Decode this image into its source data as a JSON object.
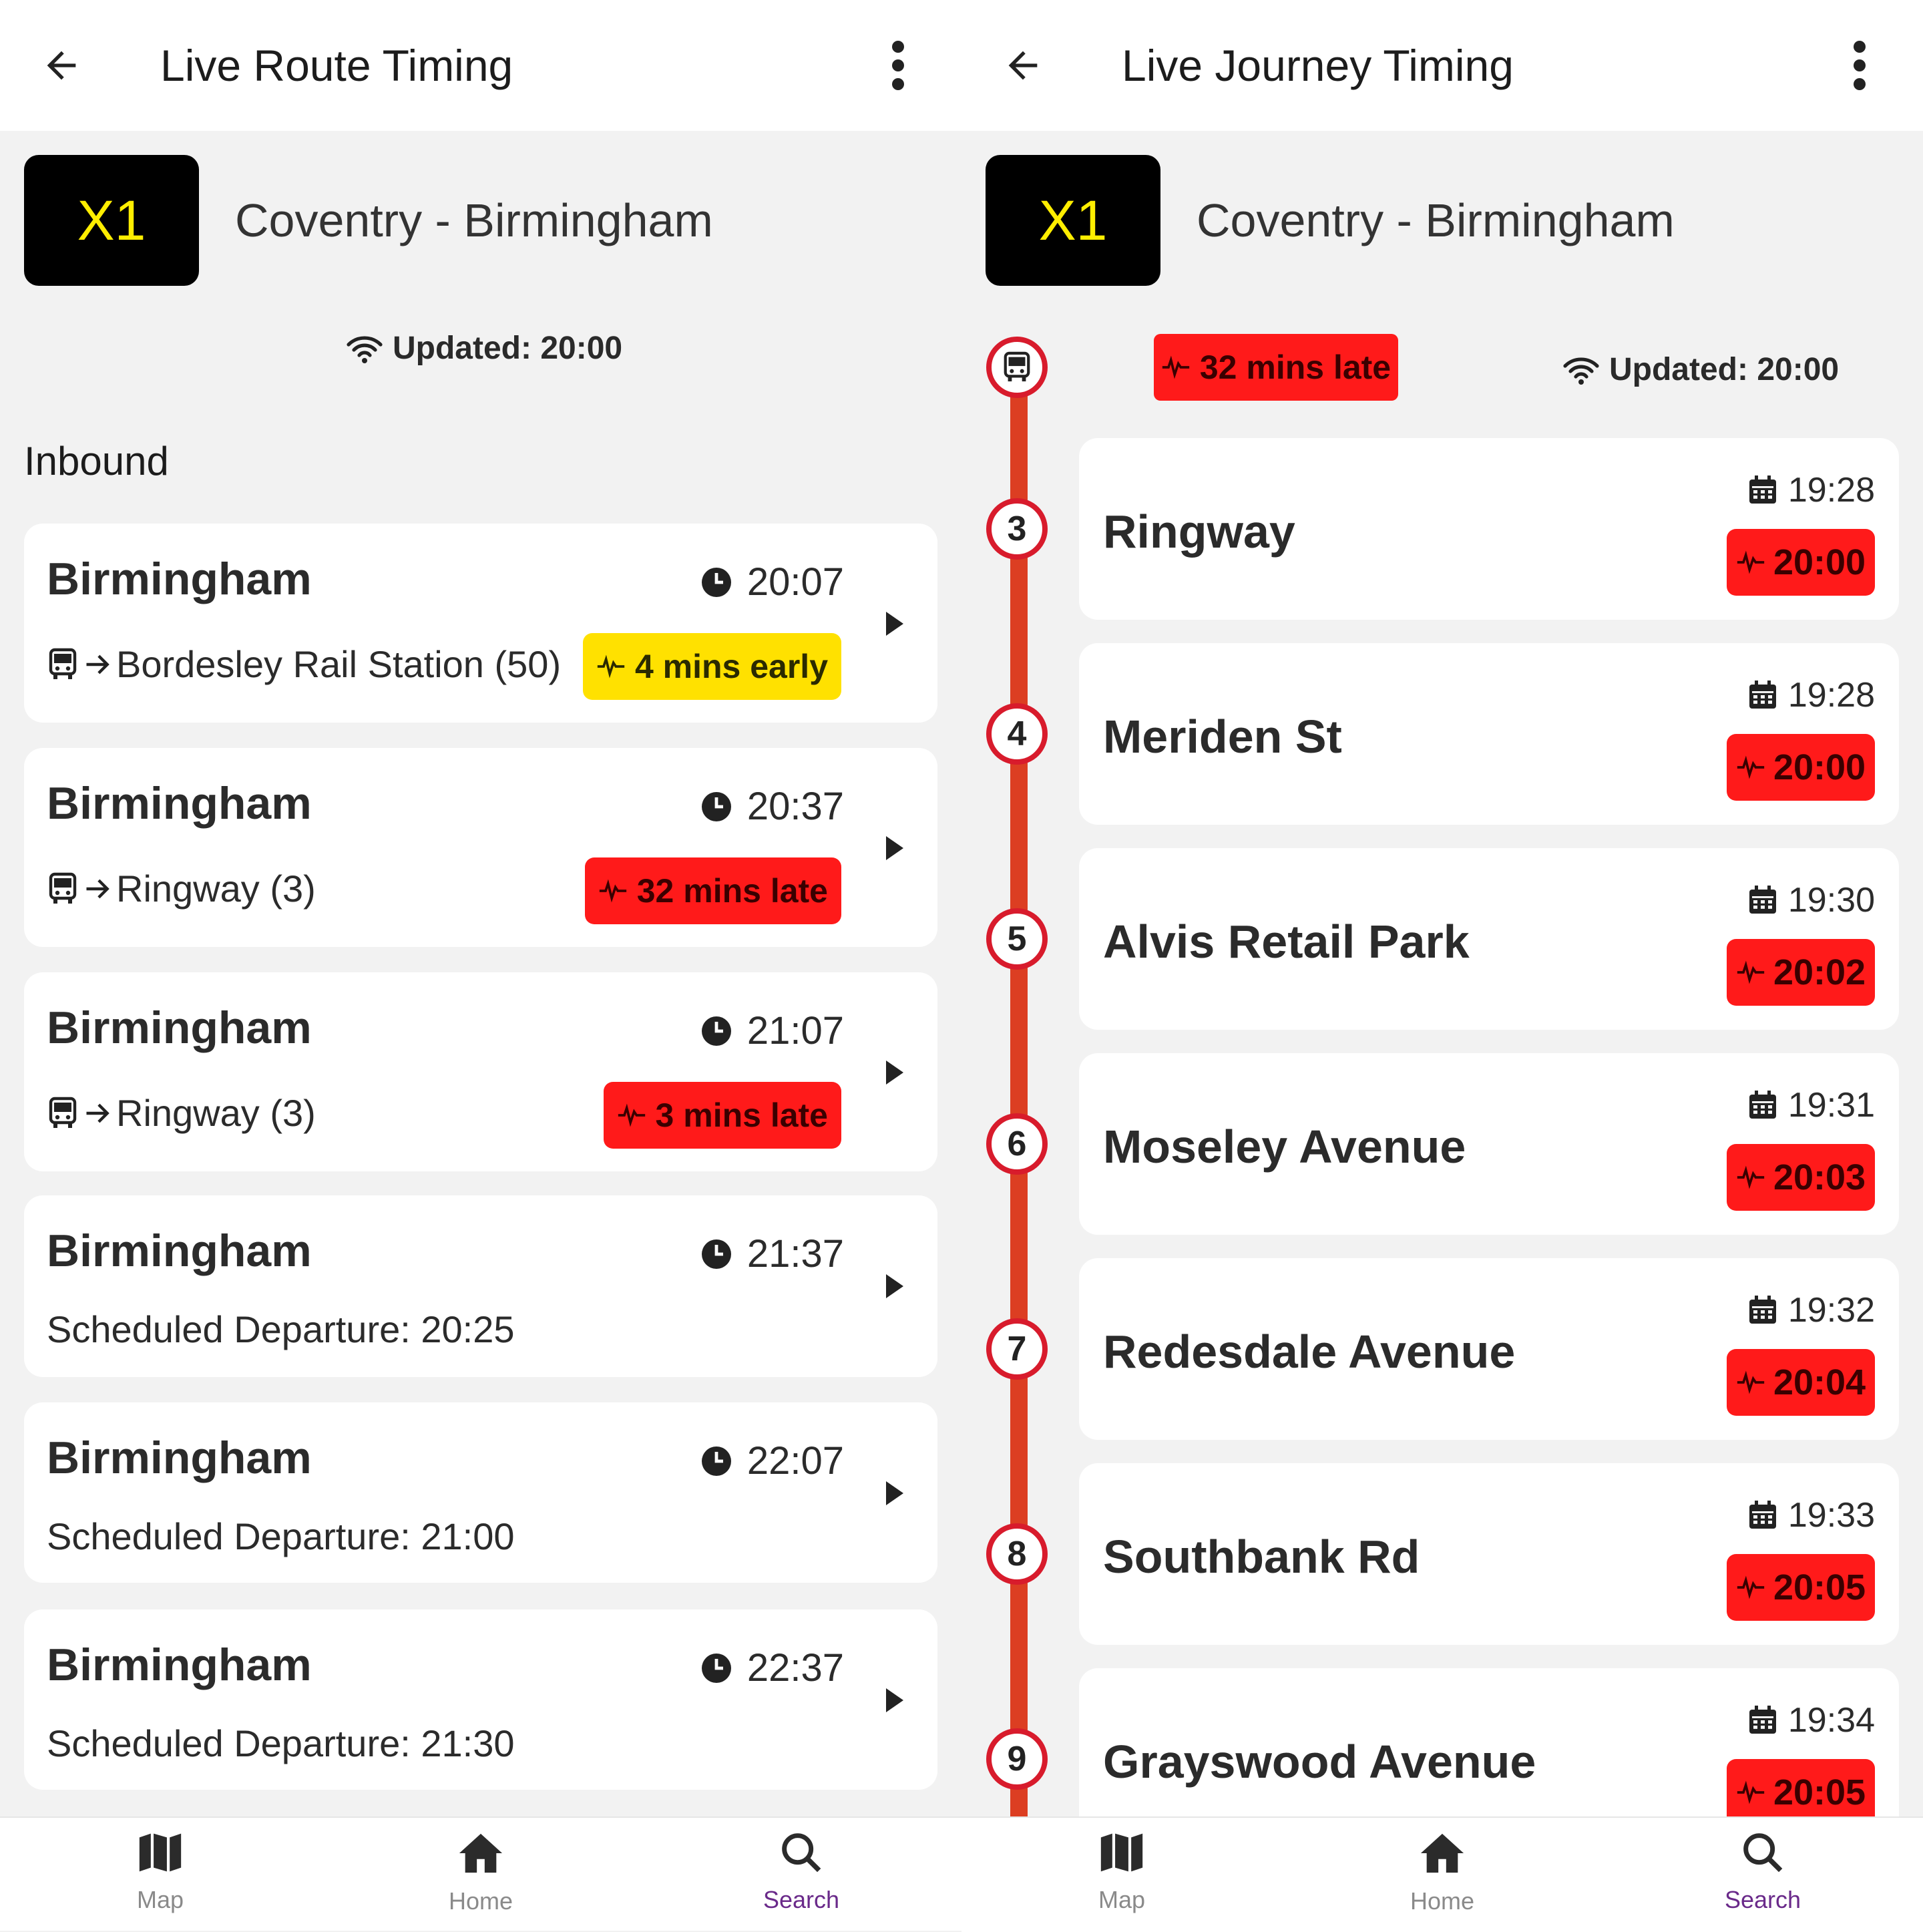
{
  "left": {
    "title": "Live Route Timing",
    "route_number": "X1",
    "route_name": "Coventry - Birmingham",
    "updated": "Updated: 20:00",
    "direction": "Inbound",
    "departures": [
      {
        "destination": "Birmingham",
        "time": "20:07",
        "sub_arrow": true,
        "stop": "Bordesley Rail Station (50)",
        "status": "4 mins early",
        "status_kind": "early"
      },
      {
        "destination": "Birmingham",
        "time": "20:37",
        "sub_arrow": true,
        "stop": "Ringway (3)",
        "status": "32 mins late",
        "status_kind": "late"
      },
      {
        "destination": "Birmingham",
        "time": "21:07",
        "sub_arrow": true,
        "stop": "Ringway (3)",
        "status": "3 mins late",
        "status_kind": "late"
      },
      {
        "destination": "Birmingham",
        "time": "21:37",
        "scheduled": "Scheduled Departure: 20:25"
      },
      {
        "destination": "Birmingham",
        "time": "22:07",
        "scheduled": "Scheduled Departure: 21:00"
      },
      {
        "destination": "Birmingham",
        "time": "22:37",
        "scheduled": "Scheduled Departure: 21:30"
      }
    ]
  },
  "right": {
    "title": "Live Journey Timing",
    "route_number": "X1",
    "route_name": "Coventry - Birmingham",
    "journey_status": "32 mins late",
    "updated": "Updated: 20:00",
    "stops": [
      {
        "seq": "3",
        "name": "Ringway",
        "scheduled": "19:28",
        "live": "20:00"
      },
      {
        "seq": "4",
        "name": "Meriden St",
        "scheduled": "19:28",
        "live": "20:00"
      },
      {
        "seq": "5",
        "name": "Alvis Retail Park",
        "scheduled": "19:30",
        "live": "20:02"
      },
      {
        "seq": "6",
        "name": "Moseley Avenue",
        "scheduled": "19:31",
        "live": "20:03"
      },
      {
        "seq": "7",
        "name": "Redesdale Avenue",
        "scheduled": "19:32",
        "live": "20:04"
      },
      {
        "seq": "8",
        "name": "Southbank Rd",
        "scheduled": "19:33",
        "live": "20:05"
      },
      {
        "seq": "9",
        "name": "Grayswood Avenue",
        "scheduled": "19:34",
        "live": "20:05"
      }
    ]
  },
  "nav": {
    "items": [
      {
        "label": "Map",
        "icon": "map-icon"
      },
      {
        "label": "Home",
        "icon": "home-icon"
      },
      {
        "label": "Search",
        "icon": "search-icon",
        "active": true
      }
    ]
  },
  "colors": {
    "late": "#ff1a1a",
    "early": "#ffe100",
    "timeline": "#dc3e22",
    "active_nav": "#6a2a8a",
    "route_badge_text": "#ffee00"
  }
}
